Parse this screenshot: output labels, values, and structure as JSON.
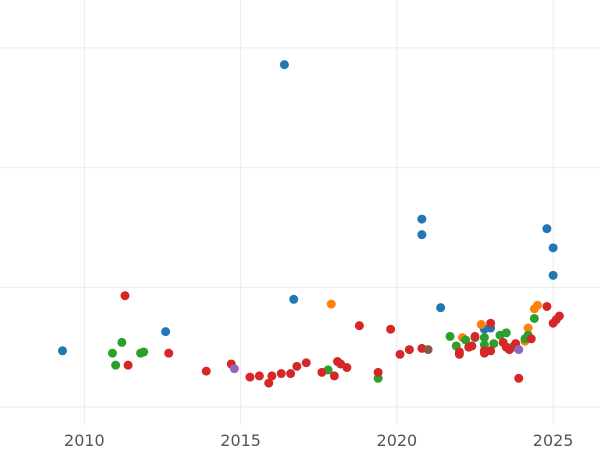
{
  "chart_data": {
    "type": "scatter",
    "title": "",
    "xlabel": "",
    "ylabel": "",
    "xlim": [
      2007.3,
      2026.5
    ],
    "ylim": [
      -0.15,
      3.4
    ],
    "grid": true,
    "x_ticks": [
      2010,
      2015,
      2020,
      2025
    ],
    "x_tick_labels": [
      "2010",
      "2015",
      "2020",
      "2025"
    ],
    "y_gridlines": [
      0,
      1,
      2,
      3
    ],
    "series": [
      {
        "color": "#1f77b4",
        "points": [
          [
            2009.3,
            0.47
          ],
          [
            2012.6,
            0.63
          ],
          [
            2016.4,
            2.86
          ],
          [
            2016.7,
            0.9
          ],
          [
            2020.8,
            1.57
          ],
          [
            2020.8,
            1.44
          ],
          [
            2021.4,
            0.83
          ],
          [
            2022.8,
            0.65
          ],
          [
            2023.0,
            0.66
          ],
          [
            2024.8,
            1.49
          ],
          [
            2025.0,
            1.33
          ],
          [
            2025.0,
            1.1
          ]
        ]
      },
      {
        "color": "#ff7f0e",
        "points": [
          [
            2017.9,
            0.86
          ],
          [
            2022.1,
            0.58
          ],
          [
            2022.7,
            0.69
          ],
          [
            2024.1,
            0.55
          ],
          [
            2024.2,
            0.66
          ],
          [
            2024.4,
            0.82
          ],
          [
            2024.5,
            0.85
          ]
        ]
      },
      {
        "color": "#2ca02c",
        "points": [
          [
            2010.9,
            0.45
          ],
          [
            2011.0,
            0.35
          ],
          [
            2011.2,
            0.54
          ],
          [
            2011.8,
            0.45
          ],
          [
            2011.9,
            0.46
          ],
          [
            2017.8,
            0.31
          ],
          [
            2019.4,
            0.24
          ],
          [
            2021.7,
            0.59
          ],
          [
            2021.9,
            0.51
          ],
          [
            2022.2,
            0.56
          ],
          [
            2022.5,
            0.58
          ],
          [
            2022.8,
            0.52
          ],
          [
            2022.8,
            0.58
          ],
          [
            2023.1,
            0.53
          ],
          [
            2023.3,
            0.6
          ],
          [
            2023.5,
            0.62
          ],
          [
            2023.7,
            0.5
          ],
          [
            2024.1,
            0.57
          ],
          [
            2024.2,
            0.6
          ],
          [
            2024.4,
            0.74
          ]
        ]
      },
      {
        "color": "#d62728",
        "points": [
          [
            2011.3,
            0.93
          ],
          [
            2011.4,
            0.35
          ],
          [
            2012.7,
            0.45
          ],
          [
            2013.9,
            0.3
          ],
          [
            2014.7,
            0.36
          ],
          [
            2015.3,
            0.25
          ],
          [
            2015.6,
            0.26
          ],
          [
            2015.9,
            0.2
          ],
          [
            2016.0,
            0.26
          ],
          [
            2016.3,
            0.28
          ],
          [
            2016.6,
            0.28
          ],
          [
            2016.8,
            0.34
          ],
          [
            2017.1,
            0.37
          ],
          [
            2017.6,
            0.29
          ],
          [
            2018.0,
            0.26
          ],
          [
            2018.1,
            0.38
          ],
          [
            2018.2,
            0.36
          ],
          [
            2018.4,
            0.33
          ],
          [
            2018.8,
            0.68
          ],
          [
            2019.4,
            0.29
          ],
          [
            2019.8,
            0.65
          ],
          [
            2020.1,
            0.44
          ],
          [
            2020.4,
            0.48
          ],
          [
            2020.8,
            0.49
          ],
          [
            2022.0,
            0.44
          ],
          [
            2022.0,
            0.46
          ],
          [
            2022.3,
            0.5
          ],
          [
            2022.4,
            0.51
          ],
          [
            2022.5,
            0.59
          ],
          [
            2022.8,
            0.45
          ],
          [
            2022.8,
            0.47
          ],
          [
            2023.0,
            0.47
          ],
          [
            2023.0,
            0.7
          ],
          [
            2023.4,
            0.54
          ],
          [
            2023.5,
            0.5
          ],
          [
            2023.6,
            0.48
          ],
          [
            2023.8,
            0.53
          ],
          [
            2023.9,
            0.24
          ],
          [
            2024.3,
            0.57
          ],
          [
            2024.8,
            0.84
          ],
          [
            2025.0,
            0.7
          ],
          [
            2025.1,
            0.73
          ],
          [
            2025.2,
            0.76
          ]
        ]
      },
      {
        "color": "#9467bd",
        "points": [
          [
            2014.8,
            0.32
          ],
          [
            2023.9,
            0.48
          ]
        ]
      },
      {
        "color": "#8c564b",
        "points": [
          [
            2021.0,
            0.48
          ]
        ]
      }
    ]
  }
}
